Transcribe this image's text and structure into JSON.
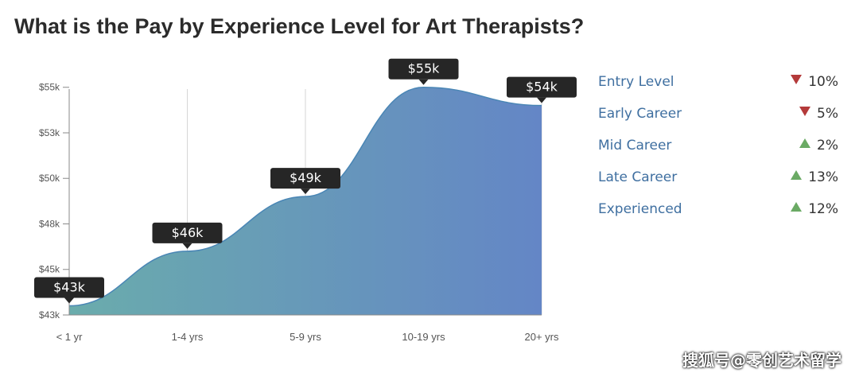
{
  "header": {
    "title": "What is the Pay by Experience Level for Art Therapists?"
  },
  "chart_data": {
    "type": "area",
    "title": "What is the Pay by Experience Level for Art Therapists?",
    "xlabel": "",
    "ylabel": "",
    "categories": [
      "< 1 yr",
      "1-4 yrs",
      "5-9 yrs",
      "10-19 yrs",
      "20+ yrs"
    ],
    "values": [
      43,
      46,
      49,
      55,
      54
    ],
    "data_labels": [
      "$43k",
      "$46k",
      "$49k",
      "$55k",
      "$54k"
    ],
    "y_ticks": [
      {
        "value": 42.5,
        "label": "$43k"
      },
      {
        "value": 45,
        "label": "$45k"
      },
      {
        "value": 47.5,
        "label": "$48k"
      },
      {
        "value": 50,
        "label": "$50k"
      },
      {
        "value": 52.5,
        "label": "$53k"
      },
      {
        "value": 55,
        "label": "$55k"
      }
    ],
    "ylim": [
      42.5,
      55.6
    ],
    "grid": "vertical",
    "colors": {
      "area_left": "#6aacac",
      "area_right": "#6486c6",
      "area_line": "#4a86b5",
      "label_bg": "#262626",
      "label_text": "#ffffff"
    }
  },
  "legend": [
    {
      "label": "Entry Level",
      "direction": "down",
      "change": "10%"
    },
    {
      "label": "Early Career",
      "direction": "down",
      "change": "5%"
    },
    {
      "label": "Mid Career",
      "direction": "up",
      "change": "2%"
    },
    {
      "label": "Late Career",
      "direction": "up",
      "change": "13%"
    },
    {
      "label": "Experienced",
      "direction": "up",
      "change": "12%"
    }
  ],
  "watermark": "搜狐号@零创艺术留学"
}
